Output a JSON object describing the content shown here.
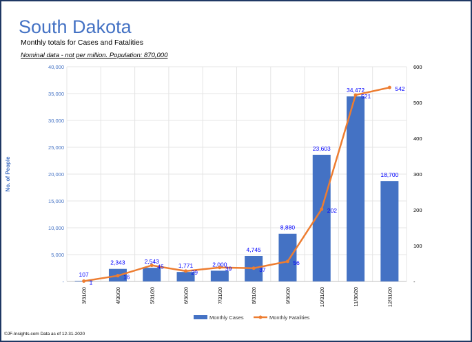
{
  "title": "South Dakota",
  "subtitle": "Monthly totals for Cases and Fatalities",
  "note": "Nominal data - not per million.  Population: 870,000",
  "footer": "©JF-Insights.com  Data as of 12-31-2020",
  "colors": {
    "cases": "#4472c4",
    "fatalities": "#ed7d31",
    "labels": "#0000ff",
    "title": "#4472c4",
    "frame": "#1f3864"
  },
  "chart_data": {
    "type": "bar+line",
    "categories": [
      "3/31/20",
      "4/30/20",
      "5/31/20",
      "6/30/20",
      "7/31/20",
      "8/31/20",
      "9/30/20",
      "10/31/20",
      "11/30/20",
      "12/31/20"
    ],
    "series": [
      {
        "name": "Monthly Cases",
        "type": "bar",
        "axis": "left",
        "values": [
          107,
          2343,
          2543,
          1771,
          2000,
          4745,
          8880,
          23603,
          34472,
          18700
        ],
        "labels": [
          "107",
          "2,343",
          "2,543",
          "1,771",
          "2,000",
          "4,745",
          "8,880",
          "23,603",
          "34,472",
          "18,700"
        ]
      },
      {
        "name": "Monthly Fatalities",
        "type": "line",
        "axis": "right",
        "values": [
          1,
          16,
          45,
          29,
          39,
          37,
          56,
          202,
          521,
          542
        ],
        "labels": [
          "1",
          "16",
          "45",
          "29",
          "39",
          "37",
          "56",
          "202",
          "521",
          "542"
        ]
      }
    ],
    "ylabel": "No. of People",
    "ylim": [
      0,
      40000
    ],
    "y_ticks": [
      "-",
      "5,000",
      "10,000",
      "15,000",
      "20,000",
      "25,000",
      "30,000",
      "35,000",
      "40,000"
    ],
    "y2lim": [
      0,
      600
    ],
    "y2_ticks": [
      "-",
      "100",
      "200",
      "300",
      "400",
      "500",
      "600"
    ],
    "grid": true,
    "legend": "bottom"
  }
}
